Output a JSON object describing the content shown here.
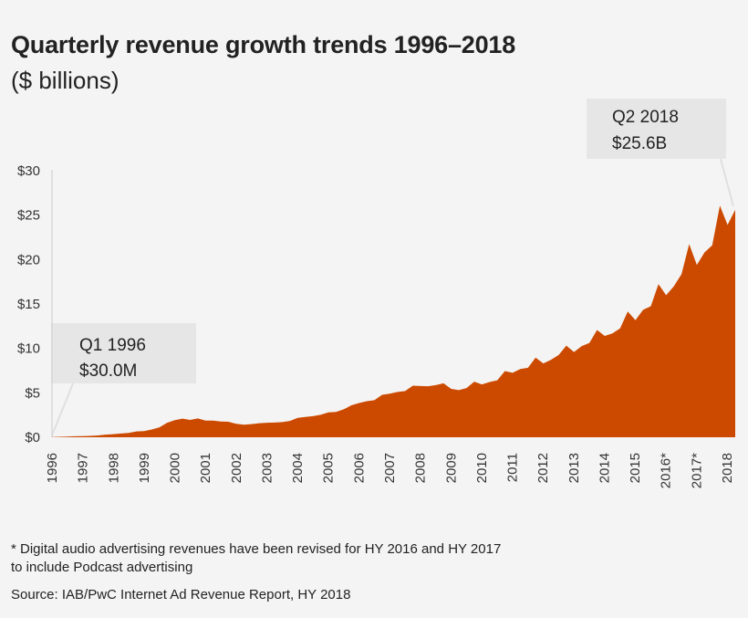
{
  "header": {
    "title": "Quarterly revenue growth trends 1996–2018",
    "subtitle": "($ billions)"
  },
  "footnote": {
    "line1": "* Digital audio advertising revenues have been revised for HY 2016 and HY 2017",
    "line2": "to include Podcast advertising"
  },
  "source": "Source: IAB/PwC Internet Ad Revenue Report, HY 2018",
  "colors": {
    "area": "#cc4a00",
    "axis": "#cccccc",
    "callout_bg": "#e6e6e6"
  },
  "chart_data": {
    "type": "area",
    "title": "Quarterly revenue growth trends 1996–2018",
    "subtitle": "($ billions)",
    "xlabel": "",
    "ylabel": "",
    "ylim": [
      0,
      30
    ],
    "grid": false,
    "y_ticks": [
      {
        "value": 0,
        "label": "$0"
      },
      {
        "value": 5,
        "label": "$5"
      },
      {
        "value": 10,
        "label": "$10"
      },
      {
        "value": 15,
        "label": "$15"
      },
      {
        "value": 20,
        "label": "$20"
      },
      {
        "value": 25,
        "label": "$25"
      },
      {
        "value": 30,
        "label": "$30"
      }
    ],
    "x_tick_labels": [
      "1996",
      "1997",
      "1998",
      "1999",
      "2000",
      "2001",
      "2002",
      "2003",
      "2004",
      "2005",
      "2006",
      "2007",
      "2008",
      "2009",
      "2010",
      "2011",
      "2012",
      "2013",
      "2014",
      "2015",
      "2016*",
      "2017*",
      "2018"
    ],
    "quarters_start": "Q1 1996",
    "series": [
      {
        "name": "Quarterly revenue",
        "values": [
          0.03,
          0.05,
          0.08,
          0.12,
          0.13,
          0.15,
          0.21,
          0.3,
          0.35,
          0.42,
          0.49,
          0.66,
          0.69,
          0.87,
          1.12,
          1.63,
          1.92,
          2.09,
          1.95,
          2.12,
          1.87,
          1.87,
          1.77,
          1.74,
          1.52,
          1.41,
          1.48,
          1.58,
          1.63,
          1.66,
          1.71,
          1.84,
          2.18,
          2.29,
          2.37,
          2.53,
          2.8,
          2.85,
          3.15,
          3.59,
          3.85,
          4.06,
          4.17,
          4.78,
          4.9,
          5.1,
          5.2,
          5.81,
          5.77,
          5.74,
          5.87,
          6.07,
          5.45,
          5.31,
          5.54,
          6.26,
          5.94,
          6.21,
          6.41,
          7.45,
          7.26,
          7.68,
          7.82,
          8.97,
          8.31,
          8.72,
          9.26,
          10.31,
          9.59,
          10.26,
          10.61,
          12.07,
          11.4,
          11.68,
          12.25,
          14.15,
          13.17,
          14.34,
          14.74,
          17.24,
          15.99,
          16.99,
          18.35,
          21.74,
          19.39,
          20.81,
          21.6,
          26.07,
          23.9,
          25.6
        ]
      }
    ],
    "annotations": [
      {
        "label_line1": "Q1 1996",
        "label_line2": "$30.0M",
        "point": "first"
      },
      {
        "label_line1": "Q2 2018",
        "label_line2": "$25.6B",
        "point": "last"
      }
    ]
  }
}
